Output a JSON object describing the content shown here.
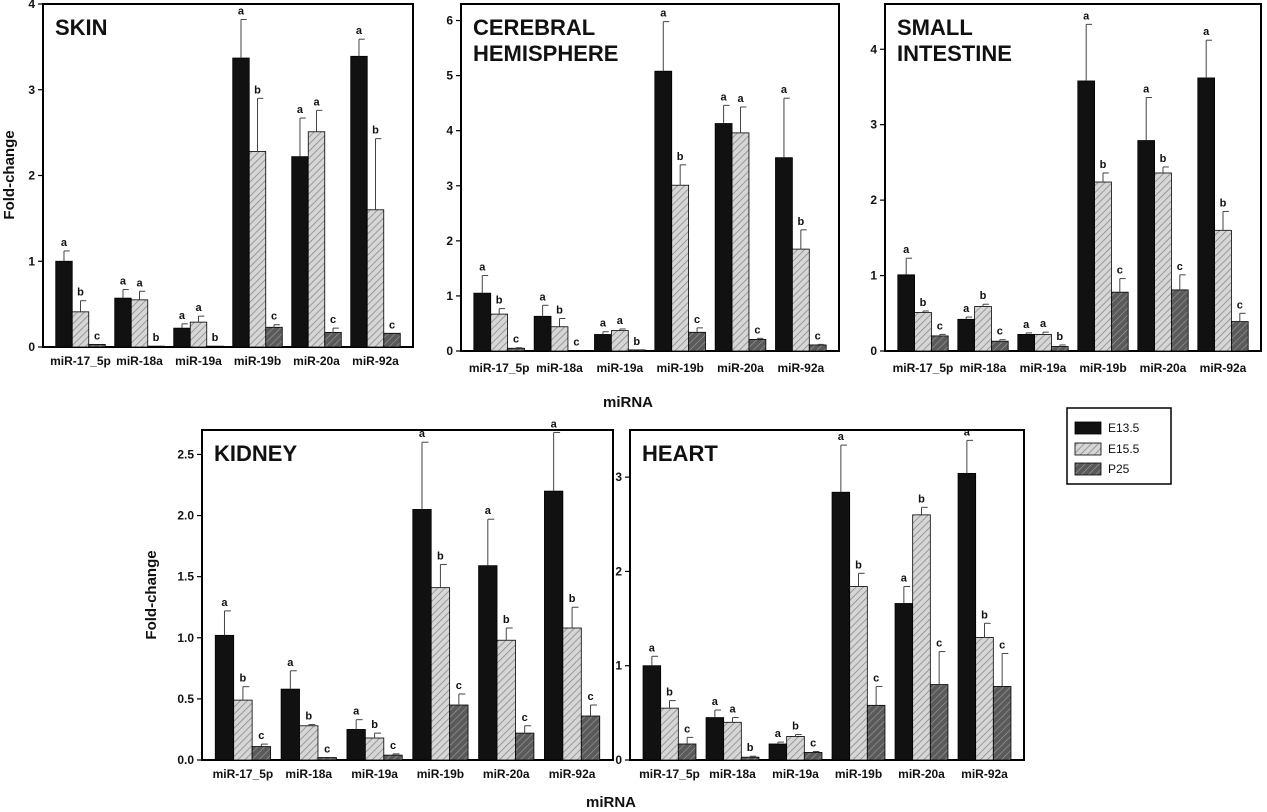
{
  "figure": {
    "ylabel": "Fold-change",
    "xlabel": "miRNA",
    "legend": {
      "placement": "right, between top and bottom rows",
      "entries": [
        "E13.5",
        "E15.5",
        "P25"
      ]
    }
  },
  "colors": {
    "E13.5": "#111111",
    "E15.5": "#d3d3d3",
    "P25": "#6e6e6e",
    "frame": "#000000"
  },
  "chart_data": [
    {
      "type": "bar",
      "title": "SKIN",
      "categories": [
        "miR-17_5p",
        "miR-18a",
        "miR-19a",
        "miR-19b",
        "miR-20a",
        "miR-92a"
      ],
      "ylim": [
        0,
        4
      ],
      "yticks": [
        "0",
        "1",
        "2",
        "3",
        "4"
      ],
      "grid": false,
      "series": [
        {
          "name": "E13.5",
          "values": [
            1.0,
            0.57,
            0.22,
            3.37,
            2.22,
            3.39
          ],
          "errors": [
            0.12,
            0.1,
            0.05,
            0.45,
            0.45,
            0.2
          ],
          "labels": [
            "a",
            "a",
            "a",
            "a",
            "a",
            "a"
          ]
        },
        {
          "name": "E15.5",
          "values": [
            0.41,
            0.55,
            0.29,
            2.28,
            2.51,
            1.6
          ],
          "errors": [
            0.13,
            0.1,
            0.07,
            0.62,
            0.25,
            0.83
          ],
          "labels": [
            "b",
            "a",
            "a",
            "b",
            "a",
            "b"
          ]
        },
        {
          "name": "P25",
          "values": [
            0.03,
            0.01,
            0.01,
            0.23,
            0.17,
            0.16
          ],
          "errors": [
            0.0,
            0.0,
            0.0,
            0.03,
            0.05,
            0.0
          ],
          "labels": [
            "c",
            "b",
            "b",
            "c",
            "c",
            "c"
          ]
        }
      ]
    },
    {
      "type": "bar",
      "title": "CEREBRAL HEMISPHERE",
      "title_lines": [
        "CEREBRAL",
        "HEMISPHERE"
      ],
      "categories": [
        "miR-17_5p",
        "miR-18a",
        "miR-19a",
        "miR-19b",
        "miR-20a",
        "miR-92a"
      ],
      "ylim": [
        0,
        6.3
      ],
      "yticks": [
        "0",
        "1",
        "2",
        "3",
        "4",
        "5",
        "6"
      ],
      "grid": false,
      "series": [
        {
          "name": "E13.5",
          "values": [
            1.05,
            0.63,
            0.3,
            5.08,
            4.13,
            3.51
          ],
          "errors": [
            0.32,
            0.2,
            0.05,
            0.9,
            0.33,
            1.08
          ],
          "labels": [
            "a",
            "a",
            "a",
            "a",
            "a",
            "a"
          ]
        },
        {
          "name": "E15.5",
          "values": [
            0.67,
            0.44,
            0.37,
            3.01,
            3.96,
            1.85
          ],
          "errors": [
            0.1,
            0.15,
            0.03,
            0.37,
            0.47,
            0.35
          ],
          "labels": [
            "b",
            "b",
            "a",
            "b",
            "a",
            "b"
          ]
        },
        {
          "name": "P25",
          "values": [
            0.05,
            0.01,
            0.02,
            0.34,
            0.21,
            0.11
          ],
          "errors": [
            0.01,
            0.0,
            0.0,
            0.08,
            0.02,
            0.01
          ],
          "labels": [
            "c",
            "c",
            "b",
            "c",
            "c",
            "c"
          ]
        }
      ]
    },
    {
      "type": "bar",
      "title": "SMALL INTESTINE",
      "title_lines": [
        "SMALL",
        "INTESTINE"
      ],
      "categories": [
        "miR-17_5p",
        "miR-18a",
        "miR-19a",
        "miR-19b",
        "miR-20a",
        "miR-92a"
      ],
      "ylim": [
        0,
        4.6
      ],
      "yticks": [
        "0",
        "1",
        "2",
        "3",
        "4"
      ],
      "grid": false,
      "series": [
        {
          "name": "E13.5",
          "values": [
            1.01,
            0.42,
            0.22,
            3.58,
            2.79,
            3.62
          ],
          "errors": [
            0.22,
            0.03,
            0.02,
            0.75,
            0.57,
            0.5
          ],
          "labels": [
            "a",
            "a",
            "a",
            "a",
            "a",
            "a"
          ]
        },
        {
          "name": "E15.5",
          "values": [
            0.51,
            0.59,
            0.22,
            2.24,
            2.36,
            1.6
          ],
          "errors": [
            0.02,
            0.03,
            0.03,
            0.12,
            0.08,
            0.25
          ],
          "labels": [
            "b",
            "b",
            "a",
            "b",
            "b",
            "b"
          ]
        },
        {
          "name": "P25",
          "values": [
            0.2,
            0.13,
            0.06,
            0.78,
            0.81,
            0.39
          ],
          "errors": [
            0.02,
            0.02,
            0.02,
            0.18,
            0.2,
            0.11
          ],
          "labels": [
            "c",
            "c",
            "b",
            "c",
            "c",
            "c"
          ]
        }
      ]
    },
    {
      "type": "bar",
      "title": "KIDNEY",
      "categories": [
        "miR-17_5p",
        "miR-18a",
        "miR-19a",
        "miR-19b",
        "miR-20a",
        "miR-92a"
      ],
      "ylim": [
        0,
        2.7
      ],
      "yticks": [
        "0.0",
        "0.5",
        "1.0",
        "1.5",
        "2.0",
        "2.5"
      ],
      "grid": false,
      "series": [
        {
          "name": "E13.5",
          "values": [
            1.02,
            0.58,
            0.25,
            2.05,
            1.59,
            2.2
          ],
          "errors": [
            0.2,
            0.15,
            0.08,
            0.55,
            0.38,
            0.48
          ],
          "labels": [
            "a",
            "a",
            "a",
            "a",
            "a",
            "a"
          ]
        },
        {
          "name": "E15.5",
          "values": [
            0.49,
            0.28,
            0.18,
            1.41,
            0.98,
            1.08
          ],
          "errors": [
            0.11,
            0.01,
            0.04,
            0.19,
            0.1,
            0.17
          ],
          "labels": [
            "b",
            "b",
            "b",
            "b",
            "b",
            "b"
          ]
        },
        {
          "name": "P25",
          "values": [
            0.11,
            0.02,
            0.04,
            0.45,
            0.22,
            0.36
          ],
          "errors": [
            0.02,
            0.0,
            0.01,
            0.09,
            0.06,
            0.09
          ],
          "labels": [
            "c",
            "c",
            "c",
            "c",
            "c",
            "c"
          ]
        }
      ]
    },
    {
      "type": "bar",
      "title": "HEART",
      "categories": [
        "miR-17_5p",
        "miR-18a",
        "miR-19a",
        "miR-19b",
        "miR-20a",
        "miR-92a"
      ],
      "ylim": [
        0,
        3.5
      ],
      "yticks": [
        "0",
        "1",
        "2",
        "3"
      ],
      "grid": false,
      "series": [
        {
          "name": "E13.5",
          "values": [
            1.0,
            0.45,
            0.17,
            2.84,
            1.66,
            3.04
          ],
          "errors": [
            0.1,
            0.08,
            0.02,
            0.5,
            0.18,
            0.35
          ],
          "labels": [
            "a",
            "a",
            "a",
            "a",
            "a",
            "a"
          ]
        },
        {
          "name": "E15.5",
          "values": [
            0.55,
            0.4,
            0.25,
            1.84,
            2.6,
            1.3
          ],
          "errors": [
            0.08,
            0.05,
            0.02,
            0.14,
            0.08,
            0.15
          ],
          "labels": [
            "b",
            "a",
            "b",
            "b",
            "b",
            "b"
          ]
        },
        {
          "name": "P25",
          "values": [
            0.17,
            0.03,
            0.08,
            0.58,
            0.8,
            0.78
          ],
          "errors": [
            0.07,
            0.01,
            0.01,
            0.2,
            0.35,
            0.35
          ],
          "labels": [
            "c",
            "b",
            "c",
            "c",
            "c",
            "c"
          ]
        }
      ]
    }
  ]
}
